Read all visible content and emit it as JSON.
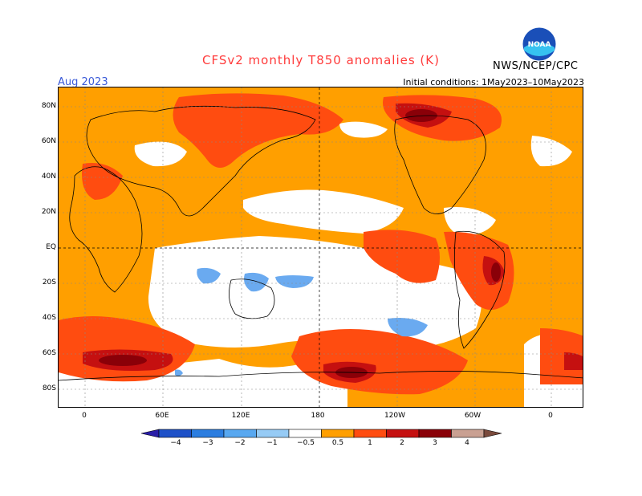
{
  "header": {
    "title": "CFSv2 monthly T850 anomalies (K)",
    "month": "Aug 2023",
    "initial_conditions": "Initial conditions: 1May2023–10May2023",
    "agency": "NWS/NCEP/CPC",
    "logo_text": "NOAA"
  },
  "axes": {
    "lat_labels": [
      "80N",
      "60N",
      "40N",
      "20N",
      "EQ",
      "20S",
      "40S",
      "60S",
      "80S"
    ],
    "lon_labels": [
      "0",
      "60E",
      "120E",
      "180",
      "120W",
      "60W",
      "0"
    ]
  },
  "colorbar": {
    "labels": [
      "−4",
      "−3",
      "−2",
      "−1",
      "−0.5",
      "0.5",
      "1",
      "2",
      "3",
      "4"
    ],
    "colors": [
      "#2a1ea8",
      "#1d50c8",
      "#2b7de0",
      "#58a8f0",
      "#96cbf5",
      "#ffffff",
      "#ff9f00",
      "#ff4c10",
      "#c51010",
      "#8a0008",
      "#c9a092",
      "#7a4a3c"
    ]
  },
  "legend_colors": {
    "cold": "#6aaaf0",
    "neutral": "#ffffff",
    "warm": "#ff9f00",
    "warmer": "#ff5a1a",
    "hot": "#c51010",
    "hottest": "#8a0008"
  }
}
